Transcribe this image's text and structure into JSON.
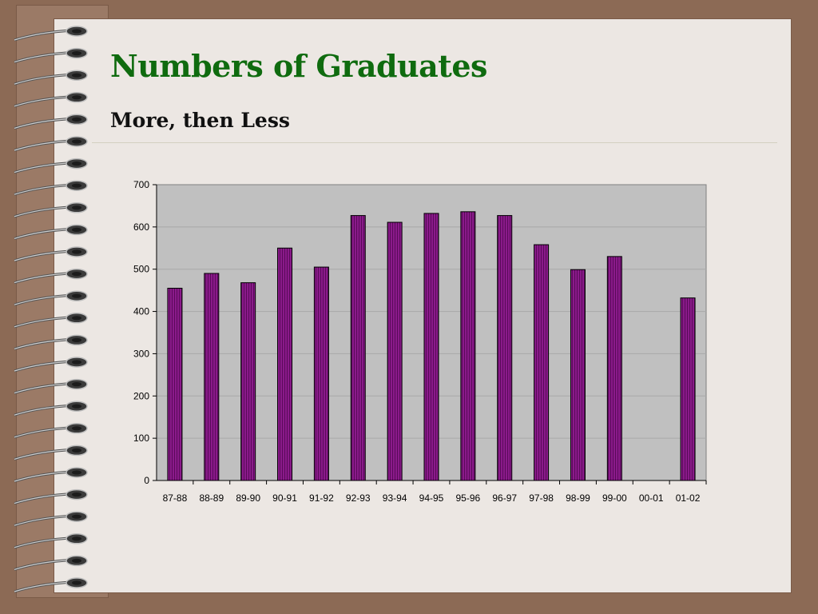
{
  "slide": {
    "title": "Numbers of Graduates",
    "subtitle": "More, then Less"
  },
  "colors": {
    "background": "#8c6a55",
    "page": "#ece7e3",
    "title": "#0f6b0f",
    "plot_area": "#c0c0c0",
    "bar": "#8a1a8a"
  },
  "chart_data": {
    "type": "bar",
    "categories": [
      "87-88",
      "88-89",
      "89-90",
      "90-91",
      "91-92",
      "92-93",
      "93-94",
      "94-95",
      "95-96",
      "96-97",
      "97-98",
      "98-99",
      "99-00",
      "00-01",
      "01-02"
    ],
    "values": [
      455,
      490,
      468,
      550,
      505,
      627,
      611,
      632,
      636,
      627,
      558,
      499,
      530,
      null,
      432
    ],
    "ylim": [
      0,
      700
    ],
    "yticks": [
      0,
      100,
      200,
      300,
      400,
      500,
      600,
      700
    ],
    "grid": true,
    "legend": "none"
  }
}
